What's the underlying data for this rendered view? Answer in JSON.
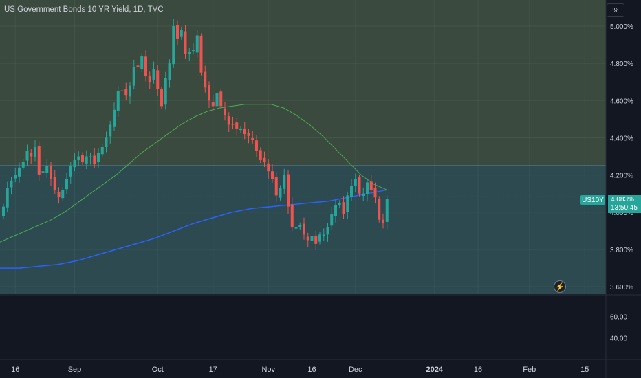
{
  "title": "US Government Bonds 10 YR Yield, 1D, TVC",
  "unit_label": "%",
  "symbol_tag": "US10Y",
  "last_value": "4.083%",
  "countdown": "13:50:45",
  "flash_icon": "lightning-icon",
  "colors": {
    "background": "#131722",
    "upper_zone": "#3a4a3e",
    "lower_zone": "#2c4a50",
    "up": "#26a69a",
    "down": "#ef5350",
    "ma_fast": "#4caf50",
    "ma_slow": "#2962ff",
    "hline": "#5b9bd5"
  },
  "chart_data": {
    "type": "candlestick",
    "title": "US Government Bonds 10 YR Yield, 1D, TVC",
    "y_range": [
      3.56,
      5.14
    ],
    "y_ticks": [
      "5.000%",
      "4.800%",
      "4.600%",
      "4.400%",
      "4.200%",
      "4.000%",
      "3.800%",
      "3.600%"
    ],
    "y_tick_values": [
      5.0,
      4.8,
      4.6,
      4.4,
      4.2,
      4.0,
      3.8,
      3.6
    ],
    "x_ticks": [
      "16",
      "Sep",
      "Oct",
      "17",
      "Nov",
      "16",
      "Dec",
      "2024",
      "16",
      "Feb",
      "15"
    ],
    "x_tick_index": [
      3,
      18,
      39,
      53,
      67,
      78,
      89,
      109,
      120,
      133,
      147
    ],
    "zone_boundary": 4.25,
    "current_level": 4.083,
    "last_close": 4.083,
    "candles_approx": [
      4.03,
      4.13,
      4.17,
      4.2,
      4.24,
      4.27,
      4.33,
      4.3,
      4.35,
      4.2,
      4.22,
      4.25,
      4.18,
      4.12,
      4.08,
      4.12,
      4.18,
      4.25,
      4.28,
      4.3,
      4.27,
      4.3,
      4.3,
      4.26,
      4.32,
      4.35,
      4.4,
      4.47,
      4.55,
      4.65,
      4.65,
      4.63,
      4.68,
      4.78,
      4.78,
      4.84,
      4.73,
      4.7,
      4.77,
      4.66,
      4.57,
      4.72,
      4.8,
      5.0,
      4.93,
      4.98,
      4.85,
      4.86,
      4.87,
      4.95,
      4.75,
      4.67,
      4.6,
      4.57,
      4.64,
      4.57,
      4.52,
      4.47,
      4.47,
      4.45,
      4.45,
      4.42,
      4.41,
      4.39,
      4.33,
      4.28,
      4.27,
      4.22,
      4.18,
      4.09,
      4.13,
      4.2,
      4.03,
      3.92,
      3.92,
      3.93,
      3.88,
      3.85,
      3.87,
      3.83,
      3.88,
      3.88,
      3.92,
      3.99,
      4.04,
      4.05,
      3.99,
      4.09,
      4.14,
      4.18,
      4.1,
      4.1,
      4.16,
      4.12,
      4.08,
      3.96,
      3.94,
      4.07
    ],
    "ma_fast_approx": [
      3.84,
      3.87,
      3.9,
      3.93,
      3.96,
      4.0,
      4.05,
      4.1,
      4.15,
      4.2,
      4.26,
      4.32,
      4.37,
      4.42,
      4.47,
      4.51,
      4.54,
      4.56,
      4.57,
      4.58,
      4.58,
      4.58,
      4.56,
      4.52,
      4.47,
      4.41,
      4.34,
      4.27,
      4.2,
      4.15,
      4.12
    ],
    "ma_slow_approx": [
      3.7,
      3.7,
      3.71,
      3.72,
      3.74,
      3.77,
      3.8,
      3.83,
      3.86,
      3.9,
      3.94,
      3.97,
      4.0,
      4.02,
      4.03,
      4.04,
      4.05,
      4.06,
      4.08,
      4.1,
      4.12
    ],
    "indicator_ticks": [
      "60.00",
      "40.00"
    ],
    "indicator_tick_values": [
      60,
      40
    ]
  }
}
